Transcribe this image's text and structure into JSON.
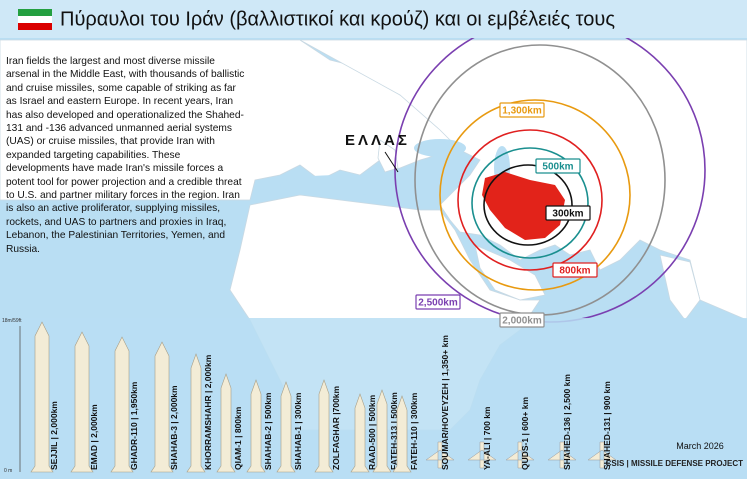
{
  "title": "Πύραυλοι του Ιράν (βαλλιστικοί και κρούζ) και οι εμβέλειές τους",
  "paragraph": "Iran fields the largest and most diverse missile arsenal in the Middle East, with thousands of ballistic and cruise missiles, some capable of striking as far as Israel and eastern Europe. In recent years, Iran has also developed and operationalized the Shahed-131 and -136 advanced unmanned aerial systems (UAS) or cruise missiles, that provide Iran with expanded targeting capabilities. These developments have made Iran's missile forces a potent tool for power projection and a credible threat to U.S. and partner military forces in the region. Iran is also an active proliferator, supplying missiles, rockets, and UAS to partners and proxies in Iraq, Lebanon, the Palestinian Territories, Yemen, and Russia.",
  "greece_label": "ΕΛΛΑΣ",
  "ranges": [
    {
      "label": "300km",
      "color": "#111111"
    },
    {
      "label": "500km",
      "color": "#1a8f8f"
    },
    {
      "label": "800km",
      "color": "#e02020"
    },
    {
      "label": "1,300km",
      "color": "#e89a10"
    },
    {
      "label": "2,000km",
      "color": "#909090"
    },
    {
      "label": "2,500km",
      "color": "#7a3fb0"
    }
  ],
  "scale_top": "18m/59ft",
  "scale_bottom": "0 m",
  "missiles": [
    "SEJJIL | 2,000km",
    "EMAD | 2,000km",
    "GHADR-110 | 1,950km",
    "SHAHAB-3 | 2,000km",
    "KHORRAMSHAHR | 2,000km",
    "QIAM-1 | 800km",
    "SHAHAB-2 | 500km",
    "SHAHAB-1 | 300km",
    "ZOLFAGHAR |700km",
    "RAAD-500 | 500km",
    "FATEH-313 | 500km",
    "FATEH-110 | 300km",
    "SOUMAR/HOVEYZEH | 1,350+ km",
    "YA-ALI | 700 km",
    "QUDS-1 | 600+ km",
    "SHAHED-136 | 2,500 km",
    "SHAHED-131 | 900 km"
  ],
  "date": "March 2026",
  "source": "CSIS | MISSILE DEFENSE PROJECT"
}
